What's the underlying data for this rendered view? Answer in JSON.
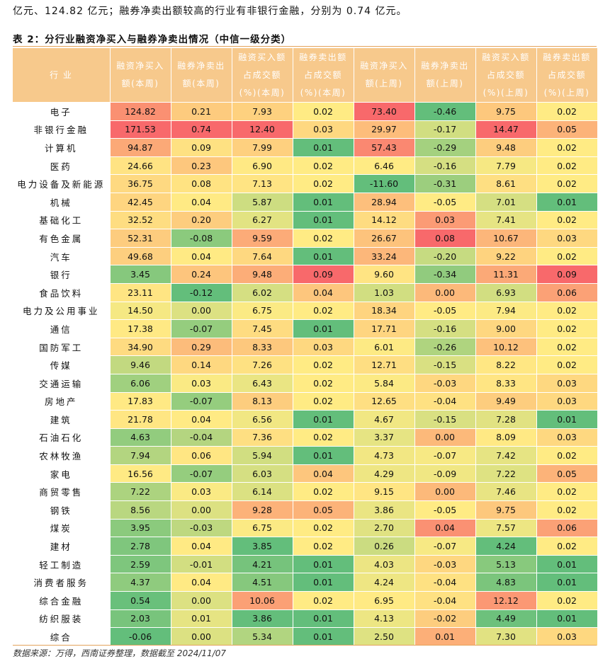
{
  "intro_text": "亿元、124.82 亿元；融券净卖出额较高的行业有非银行金融，分别为 0.74 亿元。",
  "caption": "表 2：分行业融资净买入与融券净卖出情况（中信一级分类）",
  "headers": [
    [
      "行 业"
    ],
    [
      "融资净买入",
      "额(本周)"
    ],
    [
      "融券净卖出",
      "额(本周)"
    ],
    [
      "融资买入额",
      "占成交额",
      "(%)(本周)"
    ],
    [
      "融券卖出额",
      "占成交额",
      "(%)(本周)"
    ],
    [
      "融资净买入",
      "额(上周)"
    ],
    [
      "融券净卖出",
      "额(上周)"
    ],
    [
      "融资买入额",
      "占成交额",
      "(%)(上周)"
    ],
    [
      "融券卖出额",
      "占成交额",
      "(%)(上周)"
    ]
  ],
  "rows": [
    [
      "电子",
      "124.82",
      "0.21",
      "7.93",
      "0.02",
      "73.40",
      "-0.46",
      "9.75",
      "0.02"
    ],
    [
      "非银行金融",
      "171.53",
      "0.74",
      "12.40",
      "0.03",
      "29.97",
      "-0.17",
      "14.47",
      "0.05"
    ],
    [
      "计算机",
      "94.87",
      "0.09",
      "7.99",
      "0.01",
      "57.43",
      "-0.29",
      "9.48",
      "0.02"
    ],
    [
      "医药",
      "24.66",
      "0.23",
      "6.90",
      "0.02",
      "6.46",
      "-0.16",
      "7.79",
      "0.02"
    ],
    [
      "电力设备及新能源",
      "36.75",
      "0.08",
      "7.13",
      "0.02",
      "-11.60",
      "-0.31",
      "8.61",
      "0.02"
    ],
    [
      "机械",
      "42.45",
      "0.04",
      "5.87",
      "0.01",
      "28.94",
      "-0.05",
      "7.01",
      "0.01"
    ],
    [
      "基础化工",
      "32.52",
      "0.20",
      "6.27",
      "0.01",
      "14.12",
      "0.03",
      "7.41",
      "0.02"
    ],
    [
      "有色金属",
      "52.31",
      "-0.08",
      "9.59",
      "0.02",
      "26.67",
      "0.08",
      "10.67",
      "0.03"
    ],
    [
      "汽车",
      "49.68",
      "0.04",
      "7.64",
      "0.01",
      "33.24",
      "-0.20",
      "9.22",
      "0.02"
    ],
    [
      "银行",
      "3.45",
      "0.24",
      "9.48",
      "0.09",
      "9.60",
      "-0.34",
      "11.31",
      "0.09"
    ],
    [
      "食品饮料",
      "23.11",
      "-0.12",
      "6.02",
      "0.04",
      "1.03",
      "0.00",
      "6.93",
      "0.06"
    ],
    [
      "电力及公用事业",
      "14.50",
      "0.00",
      "6.75",
      "0.02",
      "18.34",
      "-0.05",
      "7.94",
      "0.02"
    ],
    [
      "通信",
      "17.38",
      "-0.07",
      "7.45",
      "0.01",
      "17.71",
      "-0.16",
      "9.00",
      "0.02"
    ],
    [
      "国防军工",
      "34.90",
      "0.29",
      "8.33",
      "0.03",
      "6.01",
      "-0.26",
      "10.12",
      "0.02"
    ],
    [
      "传媒",
      "9.46",
      "0.14",
      "7.26",
      "0.02",
      "12.71",
      "-0.15",
      "8.22",
      "0.02"
    ],
    [
      "交通运输",
      "6.06",
      "0.03",
      "6.43",
      "0.02",
      "5.84",
      "-0.03",
      "8.33",
      "0.03"
    ],
    [
      "房地产",
      "17.83",
      "-0.07",
      "8.13",
      "0.02",
      "12.65",
      "-0.04",
      "9.49",
      "0.03"
    ],
    [
      "建筑",
      "21.78",
      "0.04",
      "6.56",
      "0.01",
      "4.67",
      "-0.15",
      "7.28",
      "0.01"
    ],
    [
      "石油石化",
      "4.63",
      "-0.04",
      "7.36",
      "0.02",
      "3.37",
      "0.00",
      "8.09",
      "0.03"
    ],
    [
      "农林牧渔",
      "7.94",
      "0.06",
      "5.94",
      "0.01",
      "4.73",
      "-0.07",
      "7.42",
      "0.02"
    ],
    [
      "家电",
      "16.56",
      "-0.07",
      "6.03",
      "0.04",
      "4.29",
      "-0.09",
      "7.22",
      "0.05"
    ],
    [
      "商贸零售",
      "7.22",
      "0.03",
      "6.14",
      "0.02",
      "9.15",
      "0.00",
      "7.46",
      "0.02"
    ],
    [
      "钢铁",
      "8.56",
      "0.00",
      "9.28",
      "0.05",
      "3.86",
      "-0.05",
      "9.75",
      "0.02"
    ],
    [
      "煤炭",
      "3.95",
      "-0.03",
      "6.75",
      "0.02",
      "2.70",
      "0.04",
      "7.57",
      "0.06"
    ],
    [
      "建材",
      "2.78",
      "0.04",
      "3.85",
      "0.02",
      "0.26",
      "-0.07",
      "4.24",
      "0.02"
    ],
    [
      "轻工制造",
      "2.59",
      "-0.01",
      "4.21",
      "0.01",
      "4.03",
      "-0.03",
      "5.13",
      "0.01"
    ],
    [
      "消费者服务",
      "4.37",
      "0.04",
      "4.51",
      "0.01",
      "4.24",
      "-0.04",
      "4.83",
      "0.01"
    ],
    [
      "综合金融",
      "0.54",
      "0.00",
      "10.06",
      "0.02",
      "6.95",
      "-0.04",
      "12.12",
      "0.02"
    ],
    [
      "纺织服装",
      "2.03",
      "0.01",
      "3.86",
      "0.01",
      "4.13",
      "-0.02",
      "4.49",
      "0.01"
    ],
    [
      "综合",
      "-0.06",
      "0.00",
      "5.34",
      "0.01",
      "2.50",
      "0.01",
      "7.30",
      "0.03"
    ]
  ],
  "source": "数据来源：万得，西南证券整理，数据截至 2024/11/07",
  "colors": {
    "header_bg": "#f7c98c",
    "rule": "#e4a35b",
    "scale_low": "#63be7b",
    "scale_mid": "#ffeb84",
    "scale_high": "#f8696b"
  }
}
